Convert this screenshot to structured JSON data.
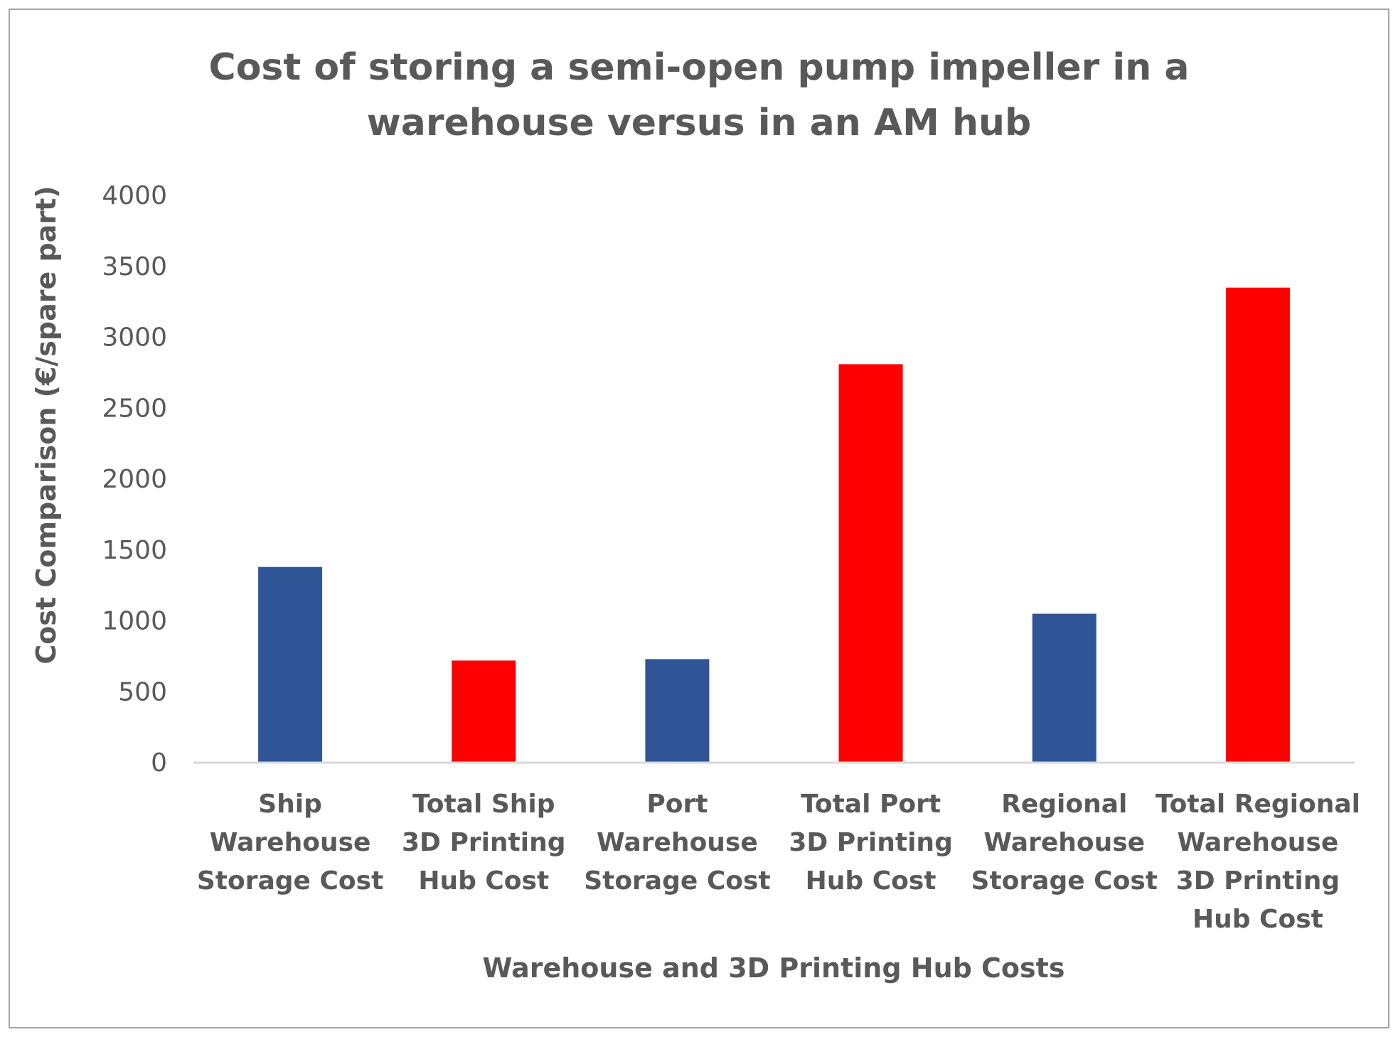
{
  "chart_data": {
    "type": "bar",
    "title": [
      "Cost of storing a semi-open pump impeller in a",
      "warehouse versus in an AM hub"
    ],
    "xlabel": "Warehouse and 3D Printing Hub Costs",
    "ylabel": "Cost Comparison  (€/spare part)",
    "ylim": [
      0,
      4000
    ],
    "yticks": [
      0,
      500,
      1000,
      1500,
      2000,
      2500,
      3000,
      3500,
      4000
    ],
    "grid": false,
    "legend": "none",
    "categories": [
      [
        "Ship",
        "Warehouse",
        "Storage Cost"
      ],
      [
        "Total Ship",
        "3D Printing",
        "Hub Cost"
      ],
      [
        "Port",
        "Warehouse",
        "Storage Cost"
      ],
      [
        "Total Port",
        "3D Printing",
        "Hub Cost"
      ],
      [
        "Regional",
        "Warehouse",
        "Storage Cost"
      ],
      [
        "Total Regional",
        "Warehouse",
        "3D Printing",
        "Hub Cost"
      ]
    ],
    "values": [
      1380,
      720,
      730,
      2810,
      1050,
      3350
    ],
    "bar_colors": [
      "#2f5597",
      "#ff0000",
      "#2f5597",
      "#ff0000",
      "#2f5597",
      "#ff0000"
    ]
  }
}
